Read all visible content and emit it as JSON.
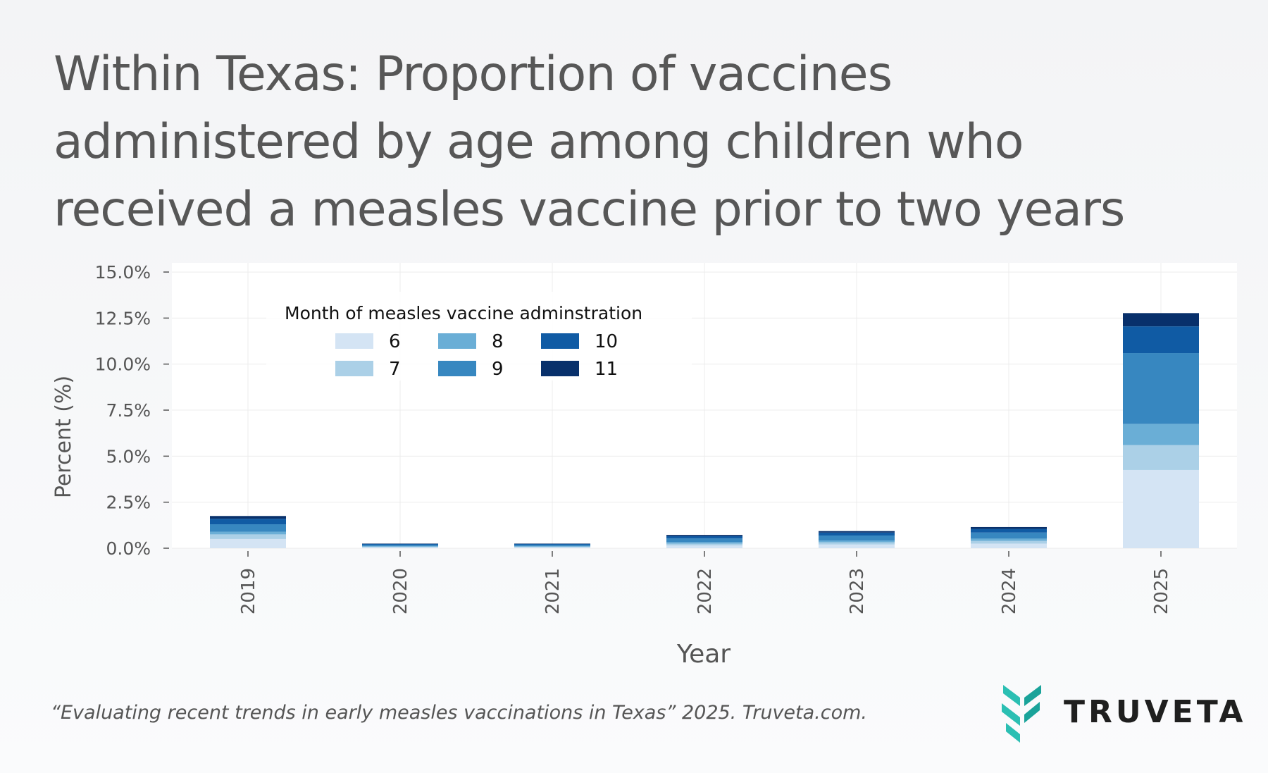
{
  "title_lines": [
    "Within Texas: Proportion of vaccines",
    "administered by age among children who",
    "received a measles vaccine prior to two years"
  ],
  "footer": {
    "citation": "“Evaluating recent trends in early measles vaccinations in Texas” 2025. Truveta.com.",
    "logo_text": "TRUVETA",
    "logo_colors": [
      "#2bbfb3",
      "#1aa39a"
    ]
  },
  "chart_data": {
    "type": "bar",
    "stacked": true,
    "categories": [
      "2019",
      "2020",
      "2021",
      "2022",
      "2023",
      "2024",
      "2025"
    ],
    "xlabel": "Year",
    "ylabel": "Percent (%)",
    "ylim": [
      0,
      15.5
    ],
    "yticks": [
      0,
      2.5,
      5,
      7.5,
      10,
      12.5,
      15
    ],
    "ytick_labels": [
      "0.0%",
      "2.5%",
      "5.0%",
      "7.5%",
      "10.0%",
      "12.5%",
      "15.0%"
    ],
    "grid": true,
    "legend": {
      "title": "Month of measles vaccine adminstration",
      "placement": "top-left"
    },
    "series": [
      {
        "name": "6",
        "color": "#d4e4f4",
        "values": [
          0.5,
          0.05,
          0.05,
          0.15,
          0.2,
          0.25,
          4.25
        ]
      },
      {
        "name": "7",
        "color": "#abd0e7",
        "values": [
          0.25,
          0.03,
          0.03,
          0.1,
          0.12,
          0.15,
          1.35
        ]
      },
      {
        "name": "8",
        "color": "#6aaed6",
        "values": [
          0.15,
          0.03,
          0.03,
          0.08,
          0.1,
          0.12,
          1.15
        ]
      },
      {
        "name": "9",
        "color": "#3787c0",
        "values": [
          0.4,
          0.07,
          0.07,
          0.2,
          0.27,
          0.33,
          3.85
        ]
      },
      {
        "name": "10",
        "color": "#105ba4",
        "values": [
          0.3,
          0.05,
          0.05,
          0.12,
          0.16,
          0.2,
          1.45
        ]
      },
      {
        "name": "11",
        "color": "#08306b",
        "values": [
          0.15,
          0.02,
          0.02,
          0.07,
          0.08,
          0.1,
          0.72
        ]
      }
    ]
  }
}
